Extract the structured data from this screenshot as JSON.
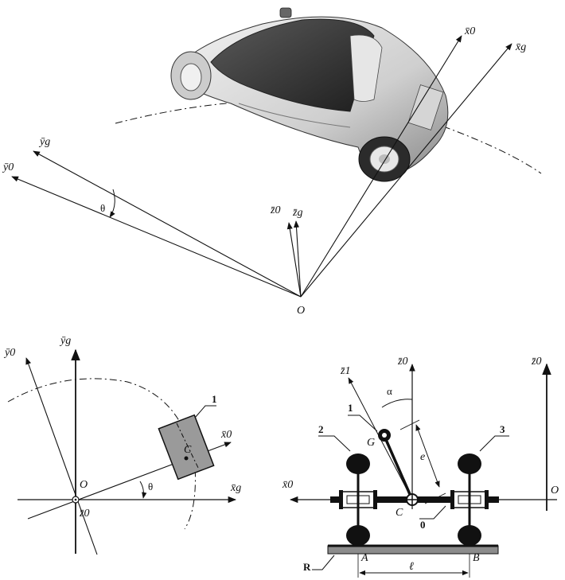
{
  "top_view": {
    "labels": {
      "x0": "x̄0",
      "xg": "x̄g",
      "y0": "ȳ0",
      "yg": "ȳg",
      "z0": "z̄0",
      "zg": "z̄g",
      "theta": "θ",
      "origin": "O"
    }
  },
  "plan_view": {
    "labels": {
      "y0": "ȳ0",
      "yg": "ȳg",
      "x0": "x̄0",
      "xg": "x̄g",
      "z0": "z̄0",
      "origin": "O",
      "point_c": "C",
      "theta": "θ",
      "body_number": "1"
    }
  },
  "front_view": {
    "labels": {
      "z1": "z̄1",
      "z0_center": "z̄0",
      "z0_right": "z̄0",
      "x0": "x̄0",
      "origin": "O",
      "alpha": "α",
      "part1": "1",
      "part2": "2",
      "part3": "3",
      "part0": "0",
      "point_g": "G",
      "point_c": "C",
      "dist_e": "e",
      "ground": "R",
      "point_a": "A",
      "point_b": "B",
      "dist_l": "ℓ"
    }
  },
  "colors": {
    "ink": "#111111",
    "body_fill": "#9a9a9a",
    "ground_fill": "#8c8c8c",
    "car_light": "#d9d9d9",
    "car_dark": "#3a3a3a"
  }
}
